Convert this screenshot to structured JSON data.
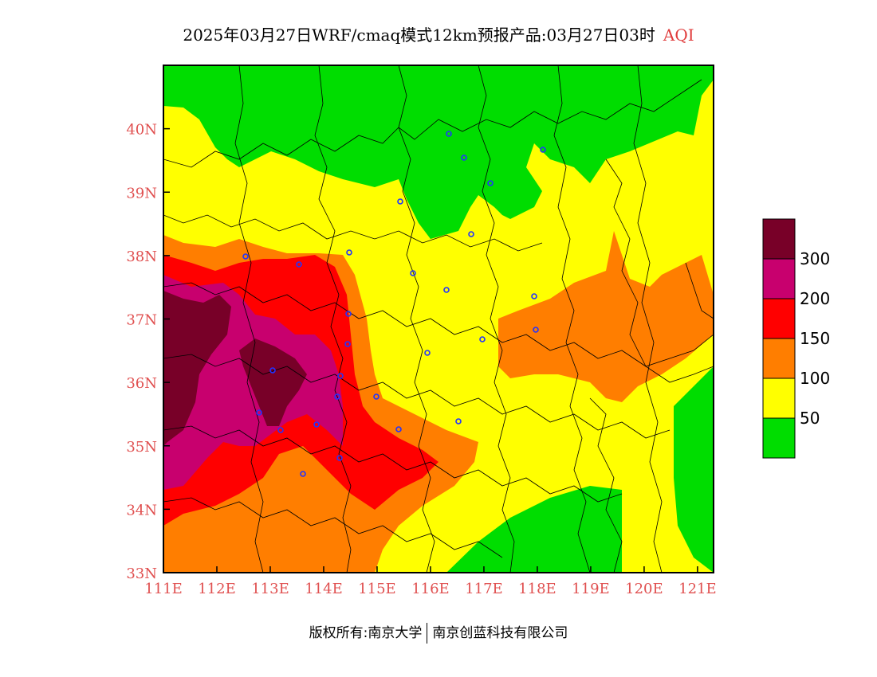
{
  "header": {
    "title": "2025年03月27日WRF/cmaq模式12km预报产品:03月27日03时",
    "product": "AQI"
  },
  "map": {
    "lat_ticks": [
      "40N",
      "39N",
      "38N",
      "37N",
      "36N",
      "35N",
      "34N",
      "33N"
    ],
    "lon_ticks": [
      "111E",
      "112E",
      "113E",
      "114E",
      "115E",
      "116E",
      "117E",
      "118E",
      "119E",
      "120E",
      "121E"
    ],
    "lon_range": [
      111,
      121.3
    ],
    "lat_range": [
      33,
      41
    ]
  },
  "legend": {
    "bins": [
      {
        "color": "#00dd00"
      },
      {
        "color": "#ffff00"
      },
      {
        "color": "#ff7e00"
      },
      {
        "color": "#ff0000"
      },
      {
        "color": "#c8006e"
      },
      {
        "color": "#780028"
      }
    ],
    "labels": [
      "50",
      "100",
      "150",
      "200",
      "300"
    ]
  },
  "footer": {
    "copyright": "版权所有:南京大学",
    "company": "南京创蓝科技有限公司"
  }
}
